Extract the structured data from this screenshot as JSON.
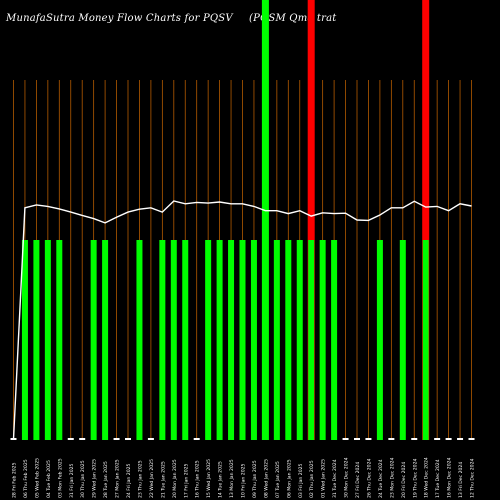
{
  "chart_data": {
    "type": "bar",
    "title": "MunafaSutra  Money Flow  Charts for PQSV",
    "subtitle": "(PQSM Qma  trat",
    "categories": [
      "28 Fri Feb 2025",
      "06 Thu Feb 2025",
      "05 Wed Feb 2025",
      "04 Tue Feb 2025",
      "03 Mon Feb 2025",
      "31 Fri Jan 2025",
      "30 Thu Jan 2025",
      "29 Wed Jan 2025",
      "28 Tue Jan 2025",
      "27 Mon Jan 2025",
      "24 Fri Jan 2025",
      "23 Thu Jan 2025",
      "22 Wed Jan 2025",
      "21 Tue Jan 2025",
      "20 Mon Jan 2025",
      "17 Fri Jan 2025",
      "16 Thu Jan 2025",
      "15 Wed Jan 2025",
      "14 Tue Jan 2025",
      "13 Mon Jan 2025",
      "10 Fri Jan 2025",
      "09 Thu Jan 2025",
      "08 Wed Jan 2025",
      "07 Tue Jan 2025",
      "06 Mon Jan 2025",
      "03 Fri Jan 2025",
      "02 Thu Jan 2025",
      "01 Wed Jan 2025",
      "31 Tue Dec 2024",
      "30 Mon Dec 2024",
      "27 Fri Dec 2024",
      "26 Thu Dec 2024",
      "24 Tue Dec 2024",
      "23 Mon Dec 2024",
      "20 Fri Dec 2024",
      "19 Thu Dec 2024",
      "18 Wed Dec 2024",
      "17 Tue Dec 2024",
      "16 Mon Dec 2024",
      "13 Fri Dec 2024",
      "12 Thu Dec 2024"
    ],
    "series": [
      {
        "values": [
          0.01,
          1,
          1,
          1,
          1,
          0.01,
          0.01,
          1,
          1,
          0.01,
          0.01,
          1,
          0.01,
          1,
          1,
          1,
          0.01,
          1,
          1,
          1,
          1,
          1,
          1,
          1,
          1,
          1,
          1,
          1,
          1,
          0.01,
          0.01,
          0.01,
          1,
          0.01,
          1,
          0.01,
          1,
          0.01,
          0.01,
          0.01,
          0.01
        ],
        "colors": [
          "white",
          "green",
          "green",
          "green",
          "green",
          "white",
          "white",
          "green",
          "green",
          "white",
          "white",
          "green",
          "white",
          "green",
          "green",
          "green",
          "white",
          "green",
          "green",
          "green",
          "green",
          "green",
          "green",
          "green",
          "green",
          "green",
          "green",
          "green",
          "green",
          "white",
          "white",
          "white",
          "green",
          "white",
          "green",
          "white",
          "green",
          "white",
          "white",
          "white",
          "white"
        ]
      },
      {
        "type": "line",
        "values": [
          0.2,
          64.5,
          65.3,
          64.9,
          64.2,
          63.3,
          62.4,
          61.5,
          60.3,
          61.9,
          63.3,
          64.1,
          64.5,
          63.3,
          66.4,
          65.6,
          66.0,
          65.8,
          66.1,
          65.6,
          65.6,
          64.9,
          63.7,
          63.7,
          62.9,
          63.7,
          62.2,
          63.1,
          62.9,
          63.0,
          61.1,
          61.0,
          62.5,
          64.5,
          64.5,
          66.3,
          64.7,
          64.9,
          63.7,
          65.6,
          65.0
        ]
      }
    ],
    "highlight_columns": [
      {
        "index": 22,
        "color": "#00ff00"
      },
      {
        "index": 26,
        "color": "#ff0000"
      },
      {
        "index": 36,
        "color": "#ff0000"
      }
    ],
    "colors": {
      "background": "#000000",
      "gridline": "#b35a00",
      "bar_green": "#00ff00",
      "bar_white": "#ffffff",
      "line": "#ffffff",
      "label": "#ffffff"
    },
    "ylim": [
      0,
      100
    ],
    "grid": true,
    "legend": "none"
  }
}
